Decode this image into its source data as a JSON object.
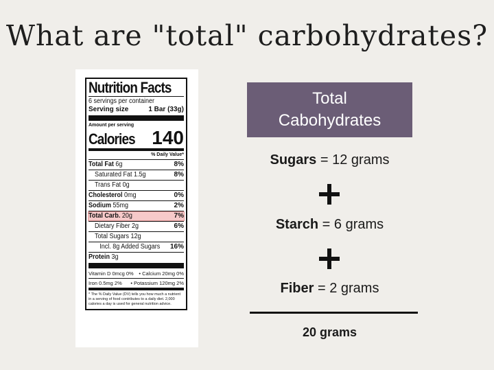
{
  "title": "What are \"total\" carbohydrates?",
  "label": {
    "heading": "Nutrition Facts",
    "servings": "6 servings per container",
    "serving_size_label": "Serving size",
    "serving_size_value": "1 Bar (33g)",
    "amount_per_serving": "Amount per serving",
    "calories_label": "Calories",
    "calories_value": "140",
    "dv_header": "% Daily Value*",
    "rows": [
      {
        "bold": "Total Fat",
        "rest": " 6g",
        "dv": "8%"
      },
      {
        "bold": "",
        "rest": "Saturated Fat 1.5g",
        "dv": "8%"
      },
      {
        "bold": "",
        "rest": "Trans Fat 0g",
        "dv": ""
      },
      {
        "bold": "Cholesterol",
        "rest": " 0mg",
        "dv": "0%"
      },
      {
        "bold": "Sodium",
        "rest": " 55mg",
        "dv": "2%"
      },
      {
        "bold": "Total Carb.",
        "rest": " 20g",
        "dv": "7%"
      },
      {
        "bold": "",
        "rest": "Dietary Fiber 2g",
        "dv": "6%"
      },
      {
        "bold": "",
        "rest": "Total Sugars 12g",
        "dv": ""
      },
      {
        "bold": "",
        "rest": "Incl. 8g Added Sugars",
        "dv": "16%"
      },
      {
        "bold": "Protein",
        "rest": " 3g",
        "dv": ""
      }
    ],
    "vitamins": [
      {
        "left": "Vitamin D 0mcg 0%",
        "right": "• Calcium 20mg 0%"
      },
      {
        "left": "Iron 0.5mg 2%",
        "right": "• Potassium 120mg 2%"
      }
    ],
    "footnote": "* The % Daily Value (DV) tells you how much a nutrient in a serving of food contributes to a daily diet. 2,000 calories a day is used for general nutrition advice."
  },
  "box": {
    "line1": "Total",
    "line2": "Cabohydrates"
  },
  "equation": [
    {
      "bold": "Sugars",
      "rest": " = 12 grams"
    },
    {
      "bold": "Starch",
      "rest": " = 6 grams"
    },
    {
      "bold": "Fiber",
      "rest": " = 2 grams"
    }
  ],
  "total": "20 grams"
}
